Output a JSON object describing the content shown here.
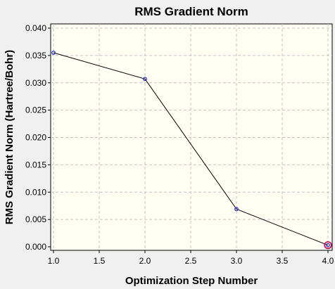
{
  "chart_data": {
    "type": "line",
    "title": "RMS Gradient Norm",
    "xlabel": "Optimization Step Number",
    "ylabel": "RMS Gradient Norm (Hartree/Bohr)",
    "x": [
      1,
      2,
      3,
      4
    ],
    "series": [
      {
        "values": [
          0.0355,
          0.0307,
          0.0069,
          0.0003
        ]
      }
    ],
    "xlim": [
      1.0,
      4.0
    ],
    "ylim": [
      0.0,
      0.04
    ],
    "xticks": [
      "1.0",
      "1.5",
      "2.0",
      "2.5",
      "3.0",
      "3.5",
      "4.0"
    ],
    "yticks": [
      "0.000",
      "0.005",
      "0.010",
      "0.015",
      "0.020",
      "0.025",
      "0.030",
      "0.035",
      "0.040"
    ],
    "grid": true,
    "highlight": "last point circled",
    "colors": {
      "plot_background": "#fffff4",
      "line": "#000000",
      "marker": "#3333cc",
      "highlight": "#cc0055"
    }
  }
}
